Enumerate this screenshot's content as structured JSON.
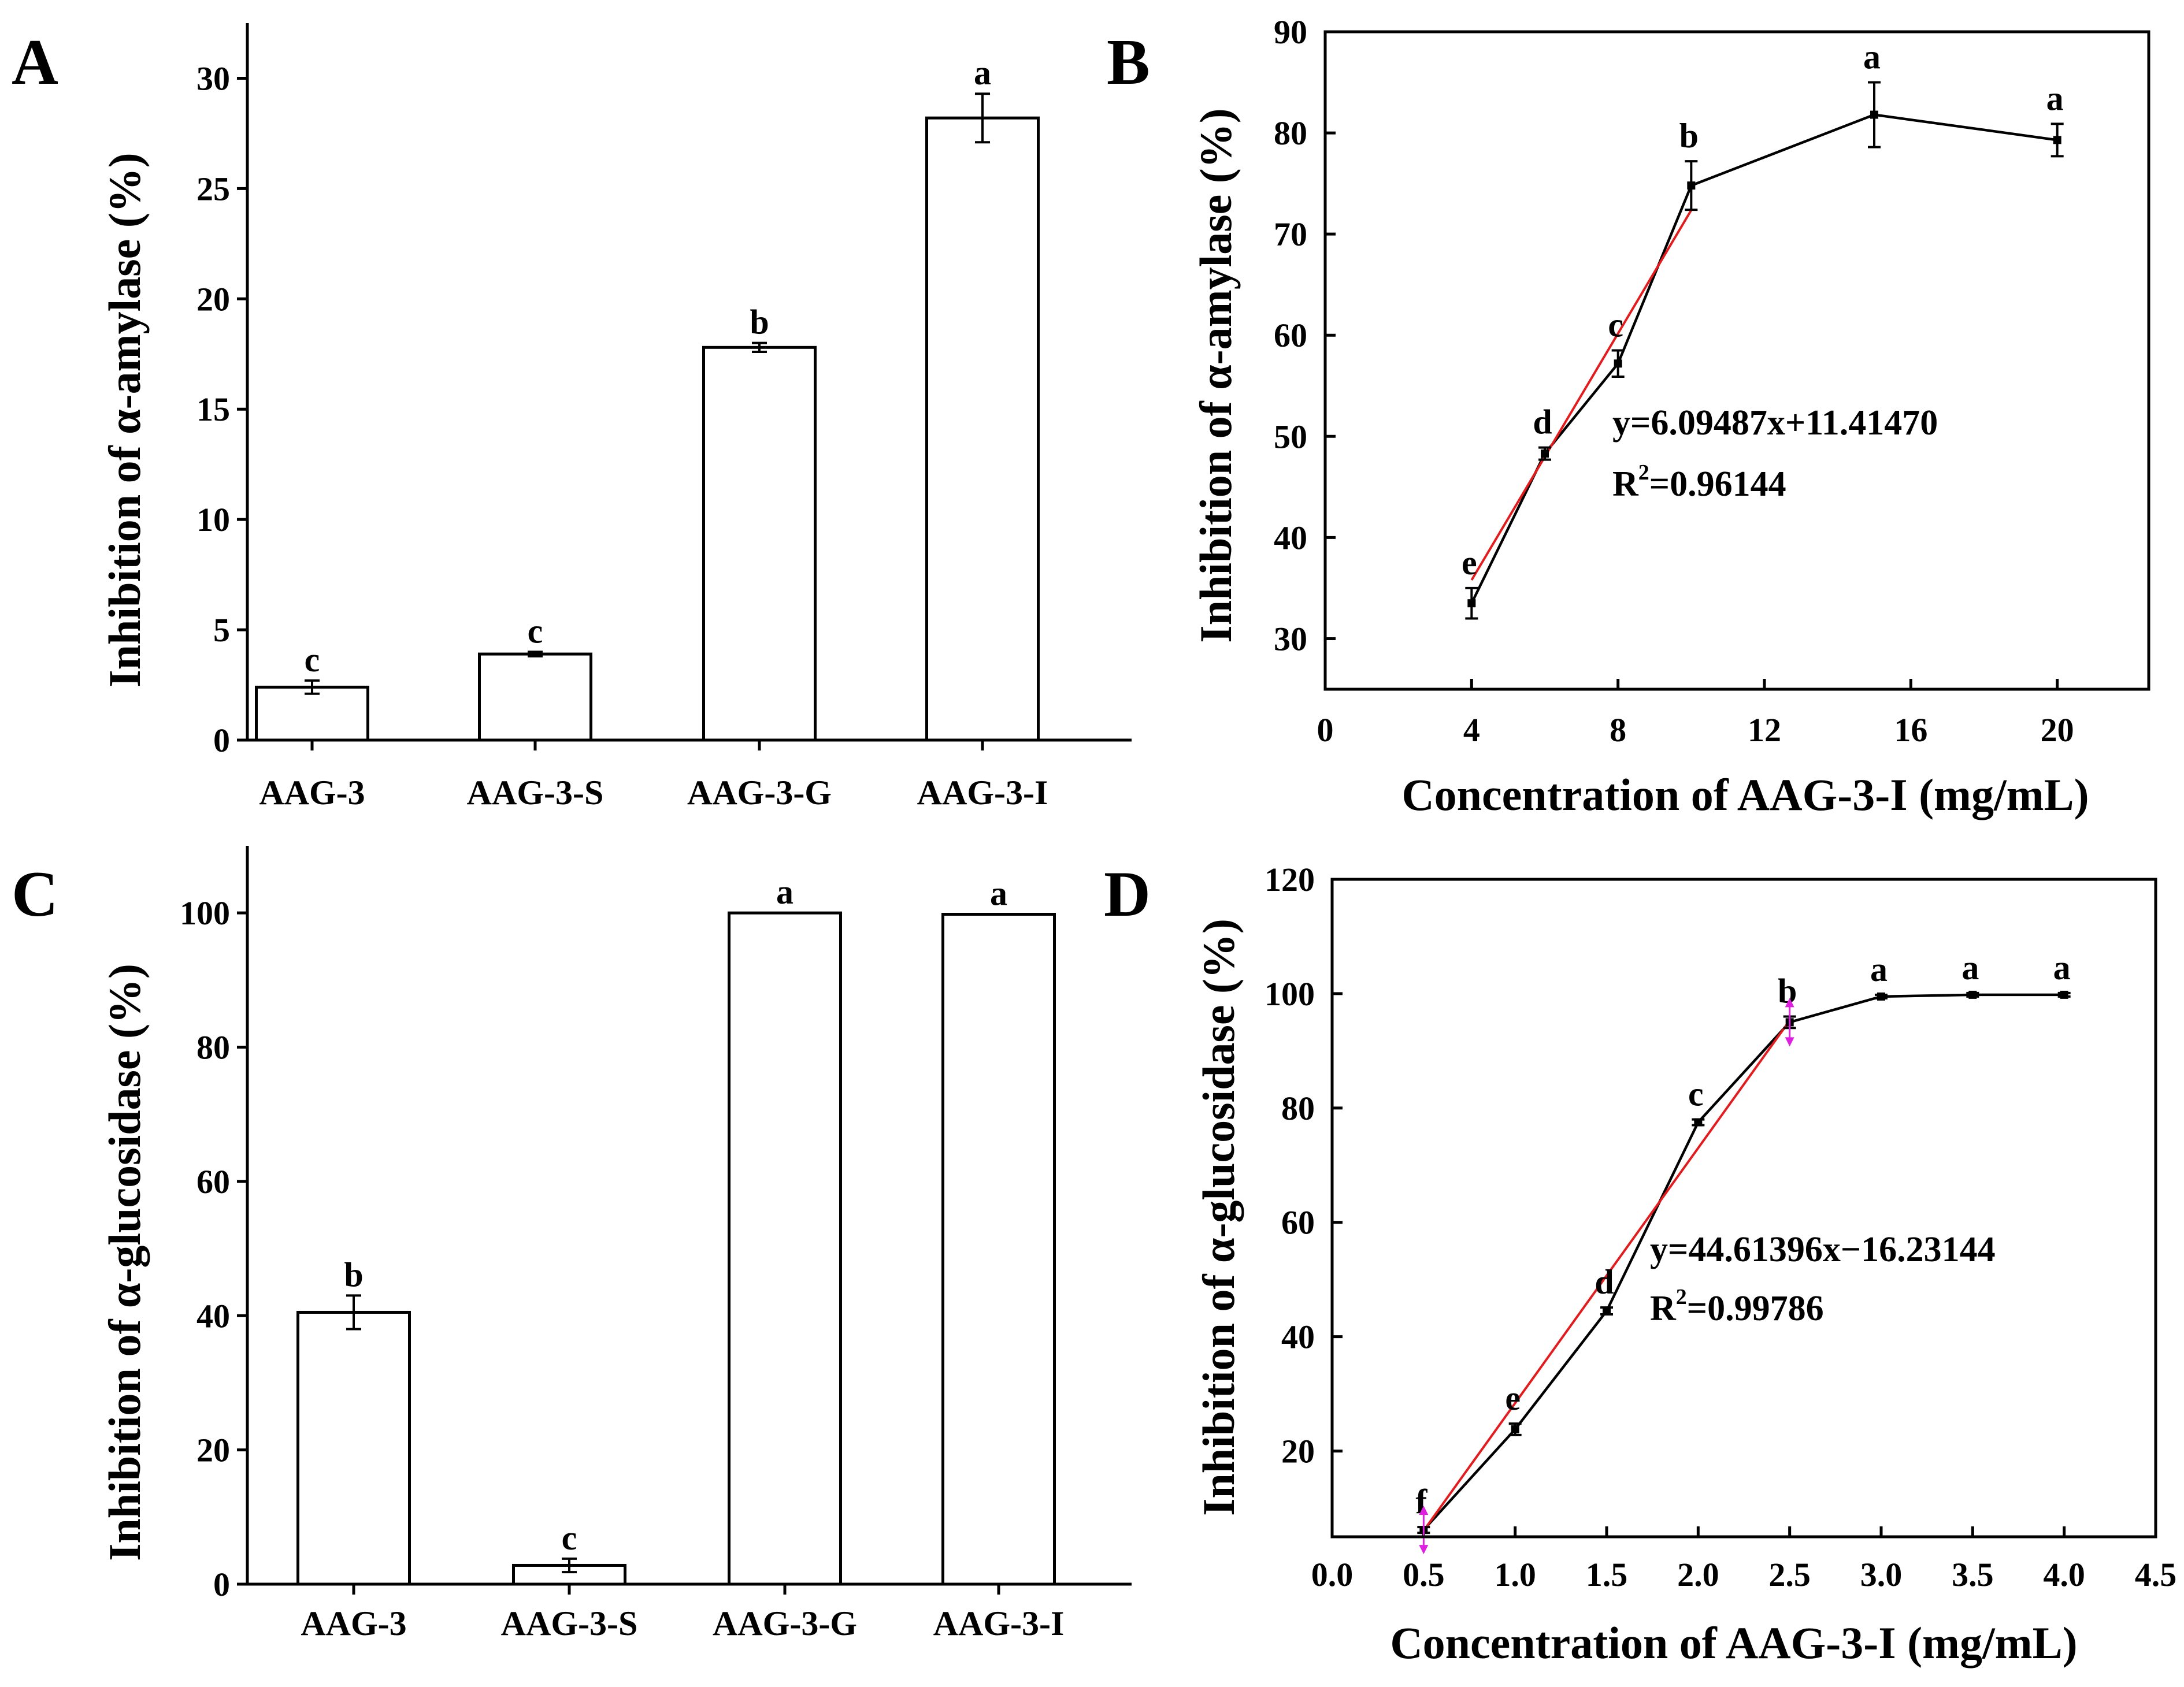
{
  "chart_data": [
    {
      "id": "A",
      "panel": "A",
      "type": "bar",
      "title": "",
      "xlabel": "",
      "ylabel": "Inhibition of α-amylase (%)",
      "categories": [
        "AAG-3",
        "AAG-3-S",
        "AAG-3-G",
        "AAG-3-I"
      ],
      "values": [
        2.4,
        3.9,
        17.8,
        28.2
      ],
      "errors": [
        0.3,
        0.1,
        0.2,
        1.1
      ],
      "significance": [
        "c",
        "c",
        "b",
        "a"
      ],
      "ylim": [
        0,
        32.5
      ],
      "yticks": [
        0,
        5,
        10,
        15,
        20,
        25,
        30
      ]
    },
    {
      "id": "B",
      "panel": "B",
      "type": "line",
      "title": "",
      "xlabel": "Concentration of AAG-3-I (mg/mL)",
      "ylabel": "Inhibition of α-amylase (%)",
      "x": [
        4,
        6,
        8,
        10,
        15,
        20
      ],
      "values": [
        33.5,
        48.3,
        57.2,
        74.8,
        81.8,
        79.3
      ],
      "errors": [
        1.5,
        0.6,
        1.3,
        2.4,
        3.2,
        1.6
      ],
      "significance": [
        "e",
        "d",
        "c",
        "b",
        "a",
        "a"
      ],
      "fit": {
        "slope": 6.09487,
        "intercept": 11.4147,
        "x_range": [
          4,
          10
        ]
      },
      "equation": {
        "text": "y=6.09487x+11.41470",
        "r2_prefix": "R",
        "r2_exp": "2",
        "r2_value": "=0.96144"
      },
      "xlim": [
        0,
        22.5
      ],
      "ylim": [
        25,
        90
      ],
      "xticks": [
        0,
        4,
        8,
        12,
        16,
        20
      ],
      "yticks": [
        30,
        40,
        50,
        60,
        70,
        80,
        90
      ]
    },
    {
      "id": "C",
      "panel": "C",
      "type": "bar",
      "title": "",
      "xlabel": "",
      "ylabel": "Inhibition of α-glucosidase (%)",
      "categories": [
        "AAG-3",
        "AAG-3-S",
        "AAG-3-G",
        "AAG-3-I"
      ],
      "values": [
        40.5,
        2.8,
        100,
        99.8
      ],
      "errors": [
        2.5,
        1.0,
        0,
        0
      ],
      "significance": [
        "b",
        "c",
        "a",
        "a"
      ],
      "ylim": [
        0,
        110
      ],
      "yticks": [
        0,
        20,
        40,
        60,
        80,
        100
      ]
    },
    {
      "id": "D",
      "panel": "D",
      "type": "line",
      "title": "",
      "xlabel": "Concentration of AAG-3-I (mg/mL)",
      "ylabel": "Inhibition of α-glucosidase (%)",
      "x": [
        0.5,
        1.0,
        1.5,
        2.0,
        2.5,
        3.0,
        3.5,
        4.0
      ],
      "values": [
        6.2,
        23.8,
        44.5,
        77.5,
        95,
        99.5,
        99.8,
        99.8
      ],
      "errors": [
        0.5,
        1.0,
        0.6,
        0.5,
        1.0,
        0.3,
        0.3,
        0.3
      ],
      "significance": [
        "f",
        "e",
        "d",
        "c",
        "b",
        "a",
        "a",
        "a"
      ],
      "fit": {
        "slope": 44.61396,
        "intercept": -16.23144,
        "x_range": [
          0.5,
          2.5
        ]
      },
      "equation": {
        "text": "y=44.61396x−16.23144",
        "r2_prefix": "R",
        "r2_exp": "2",
        "r2_value": "=0.99786"
      },
      "xlim": [
        0,
        4.5
      ],
      "ylim": [
        5,
        120
      ],
      "xticks": [
        "0.0",
        "0.5",
        "1.0",
        "1.5",
        "2.0",
        "2.5",
        "3.0",
        "3.5",
        "4.0",
        "4.5"
      ],
      "yticks": [
        20,
        40,
        60,
        80,
        100,
        120
      ]
    }
  ],
  "colors": {
    "axis": "#000000",
    "bar_fill": "#ffffff",
    "fit_line": "#e41a1c",
    "marker": "#000000",
    "arrow": "#e020e0"
  }
}
